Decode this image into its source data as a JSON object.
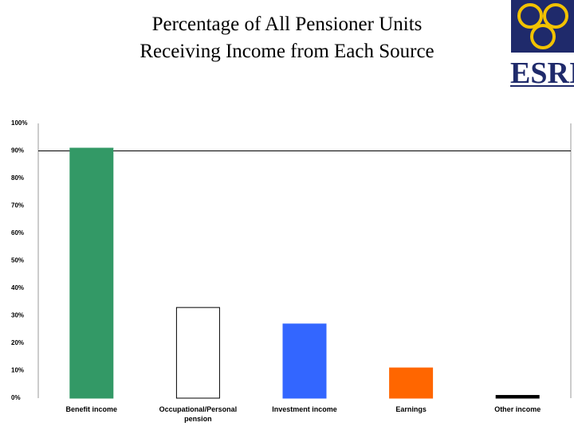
{
  "chart_data": {
    "type": "bar",
    "title": "Percentage of All Pensioner Units Receiving Income from Each Source",
    "categories": [
      "Benefit income",
      "Occupational/Personal pension",
      "Investment income",
      "Earnings",
      "Other income"
    ],
    "values": [
      91,
      33,
      27,
      11,
      1
    ],
    "colors": [
      "#339966",
      "#ffffff",
      "#3366ff",
      "#ff6600",
      "#000000"
    ],
    "ylim": [
      0,
      100
    ],
    "yticks": [
      {
        "value": 0,
        "label": "0%"
      },
      {
        "value": 10,
        "label": "10%"
      },
      {
        "value": 20,
        "label": "20%"
      },
      {
        "value": 30,
        "label": "30%"
      },
      {
        "value": 40,
        "label": "40%"
      },
      {
        "value": 50,
        "label": "50%"
      },
      {
        "value": 60,
        "label": "60%"
      },
      {
        "value": 70,
        "label": "70%"
      },
      {
        "value": 80,
        "label": "80%"
      },
      {
        "value": 90,
        "label": "90%"
      },
      {
        "value": 100,
        "label": "100%"
      }
    ],
    "grid": false
  },
  "logo_text": "ESRI"
}
